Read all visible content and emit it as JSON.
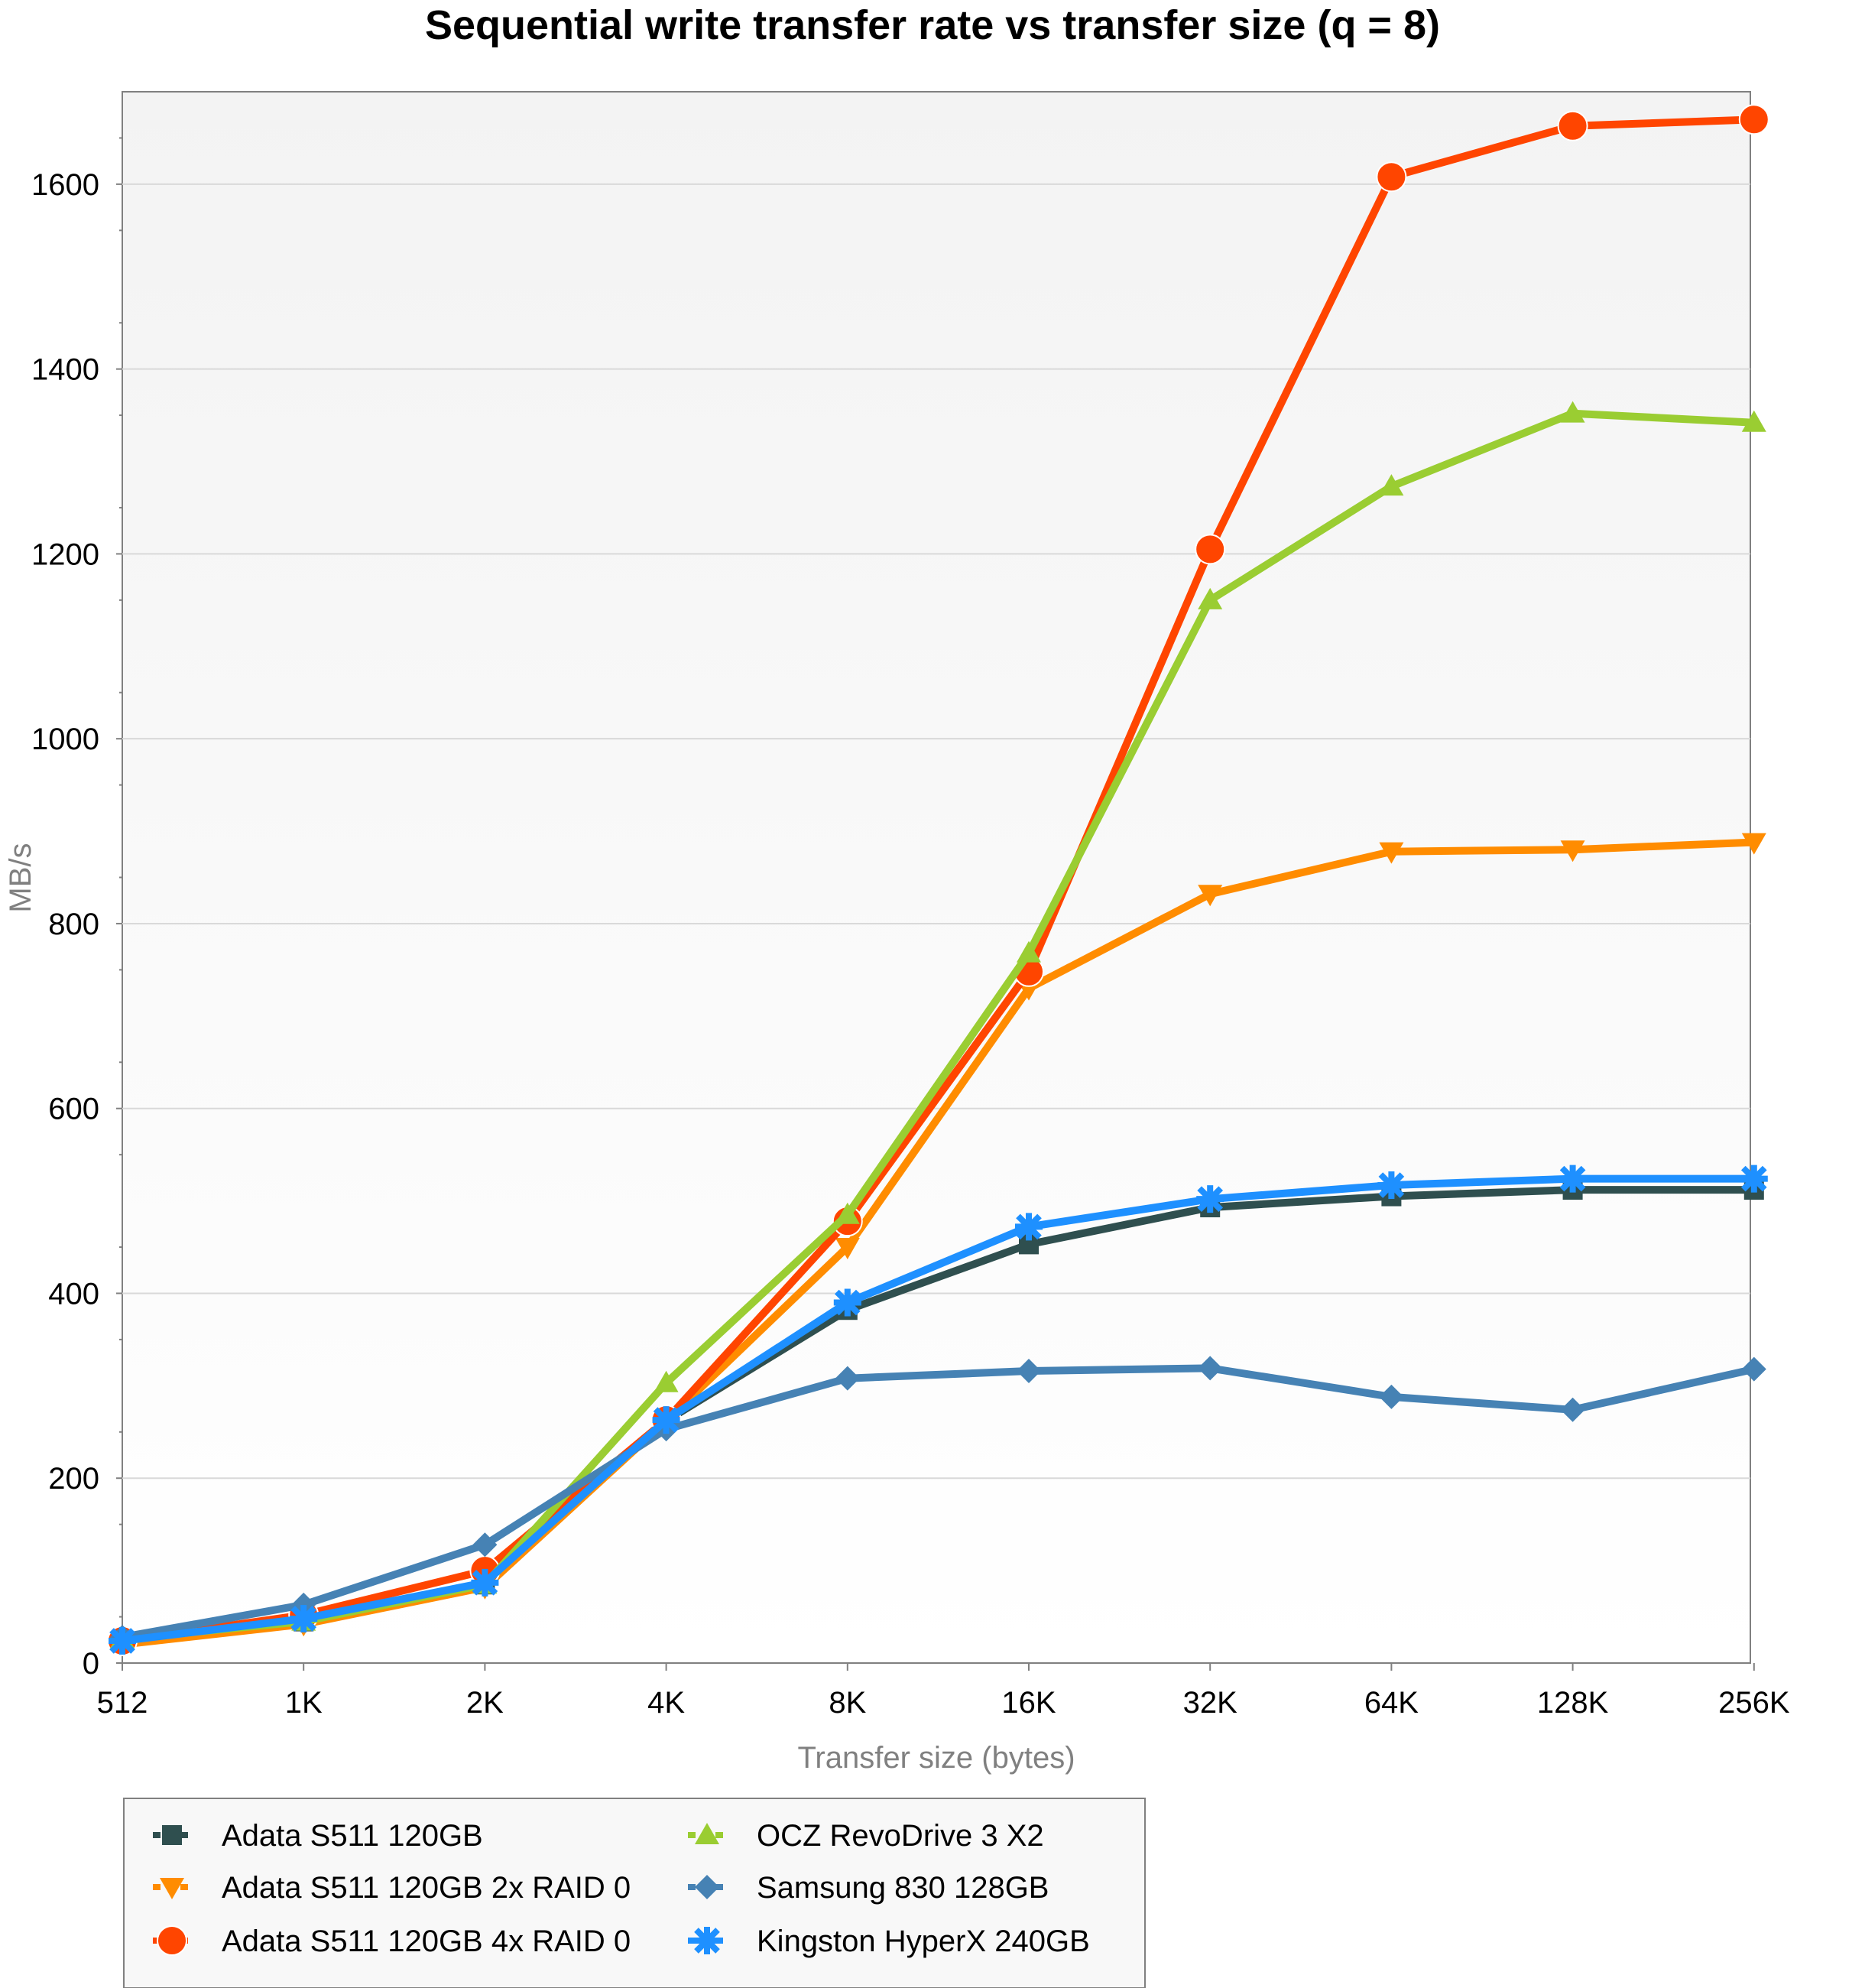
{
  "chart_data": {
    "type": "line",
    "title": "Sequential write transfer rate vs transfer size (q = 8)",
    "xlabel": "Transfer size (bytes)",
    "ylabel": "MB/s",
    "categories": [
      "512",
      "1K",
      "2K",
      "4K",
      "8K",
      "16K",
      "32K",
      "64K",
      "128K",
      "256K"
    ],
    "ylim": [
      0,
      1700
    ],
    "yticks": [
      0,
      200,
      400,
      600,
      800,
      1000,
      1200,
      1400,
      1600
    ],
    "grid": true,
    "legend_position": "bottom",
    "series": [
      {
        "name": "Adata S511 120GB",
        "color": "#2f4f4f",
        "marker": "square",
        "values": [
          22,
          45,
          85,
          262,
          382,
          453,
          493,
          505,
          512,
          512
        ]
      },
      {
        "name": "Adata S511 120GB 2x RAID 0",
        "color": "#ff8c00",
        "marker": "triangle-down",
        "values": [
          20,
          42,
          82,
          262,
          450,
          730,
          832,
          878,
          880,
          888
        ]
      },
      {
        "name": "Adata S511 120GB 4x RAID 0",
        "color": "#ff4500",
        "marker": "circle",
        "values": [
          24,
          52,
          100,
          263,
          478,
          748,
          1205,
          1608,
          1663,
          1670
        ]
      },
      {
        "name": "OCZ RevoDrive 3 X2",
        "color": "#9acd32",
        "marker": "triangle-up",
        "values": [
          26,
          45,
          85,
          303,
          485,
          768,
          1150,
          1273,
          1352,
          1342
        ]
      },
      {
        "name": "Samsung 830 128GB",
        "color": "#4682b4",
        "marker": "diamond",
        "values": [
          28,
          63,
          128,
          253,
          308,
          316,
          319,
          288,
          274,
          318
        ]
      },
      {
        "name": "Kingston HyperX 240GB",
        "color": "#1e90ff",
        "marker": "star",
        "values": [
          24,
          48,
          87,
          263,
          390,
          472,
          502,
          517,
          524,
          524
        ]
      }
    ]
  }
}
